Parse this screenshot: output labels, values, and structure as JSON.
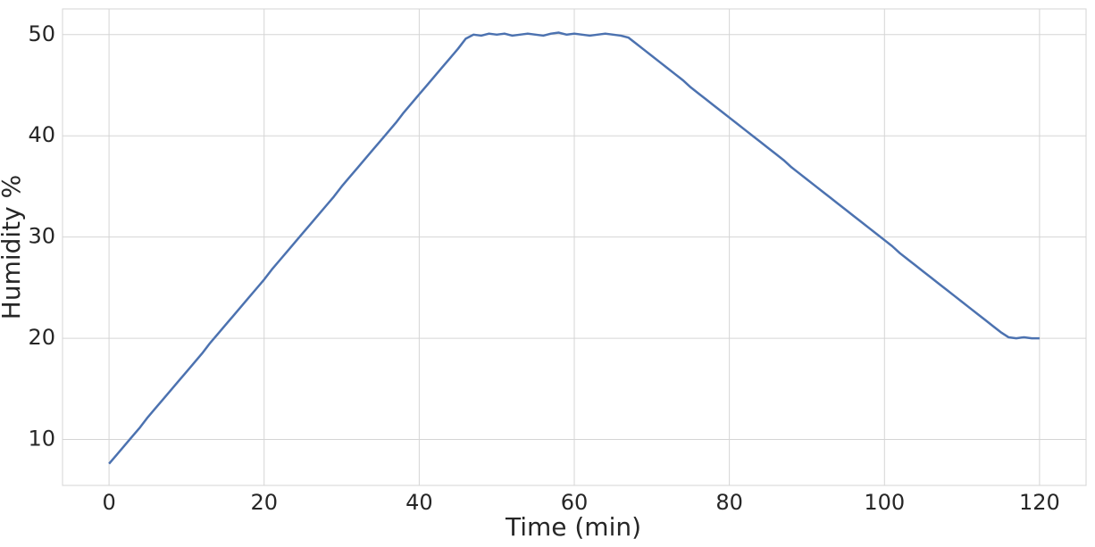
{
  "chart_data": {
    "type": "line",
    "xlabel": "Time (min)",
    "ylabel": "Humidity %",
    "x": [
      0,
      1,
      2,
      3,
      4,
      5,
      6,
      7,
      8,
      9,
      10,
      11,
      12,
      13,
      14,
      15,
      16,
      17,
      18,
      19,
      20,
      21,
      22,
      23,
      24,
      25,
      26,
      27,
      28,
      29,
      30,
      31,
      32,
      33,
      34,
      35,
      36,
      37,
      38,
      39,
      40,
      41,
      42,
      43,
      44,
      45,
      46,
      47,
      48,
      49,
      50,
      51,
      52,
      53,
      54,
      55,
      56,
      57,
      58,
      59,
      60,
      61,
      62,
      63,
      64,
      65,
      66,
      67,
      68,
      69,
      70,
      71,
      72,
      73,
      74,
      75,
      76,
      77,
      78,
      79,
      80,
      81,
      82,
      83,
      84,
      85,
      86,
      87,
      88,
      89,
      90,
      91,
      92,
      93,
      94,
      95,
      96,
      97,
      98,
      99,
      100,
      101,
      102,
      103,
      104,
      105,
      106,
      107,
      108,
      109,
      110,
      111,
      112,
      113,
      114,
      115,
      116,
      117,
      118,
      119,
      120
    ],
    "series": [
      {
        "color": "#4c72b0",
        "values": [
          7.6,
          8.5,
          9.4,
          10.3,
          11.2,
          12.2,
          13.1,
          14.0,
          14.9,
          15.8,
          16.7,
          17.6,
          18.5,
          19.5,
          20.4,
          21.3,
          22.2,
          23.1,
          24.0,
          24.9,
          25.8,
          26.8,
          27.7,
          28.6,
          29.5,
          30.4,
          31.3,
          32.2,
          33.1,
          34.0,
          35.0,
          35.9,
          36.8,
          37.7,
          38.6,
          39.5,
          40.4,
          41.3,
          42.3,
          43.2,
          44.1,
          45.0,
          45.9,
          46.8,
          47.7,
          48.6,
          49.6,
          50.0,
          49.9,
          50.1,
          50.0,
          50.1,
          49.9,
          50.0,
          50.1,
          50.0,
          49.9,
          50.1,
          50.2,
          50.0,
          50.1,
          50.0,
          49.9,
          50.0,
          50.1,
          50.0,
          49.9,
          49.7,
          49.1,
          48.5,
          47.9,
          47.3,
          46.7,
          46.1,
          45.5,
          44.8,
          44.2,
          43.6,
          43.0,
          42.4,
          41.8,
          41.2,
          40.6,
          40.0,
          39.4,
          38.8,
          38.2,
          37.6,
          36.9,
          36.3,
          35.7,
          35.1,
          34.5,
          33.9,
          33.3,
          32.7,
          32.1,
          31.5,
          30.9,
          30.3,
          29.7,
          29.1,
          28.4,
          27.8,
          27.2,
          26.6,
          26.0,
          25.4,
          24.8,
          24.2,
          23.6,
          23.0,
          22.4,
          21.8,
          21.2,
          20.6,
          20.1,
          20.0,
          20.1,
          20.0,
          20.0
        ]
      }
    ],
    "xlim": [
      -6,
      126
    ],
    "xticks": [
      0,
      20,
      40,
      60,
      80,
      100,
      120
    ],
    "ylim": [
      5.46,
      52.54
    ],
    "yticks": [
      10,
      20,
      30,
      40,
      50
    ],
    "grid": true
  }
}
